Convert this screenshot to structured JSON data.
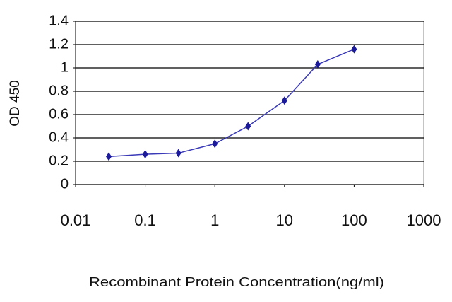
{
  "chart_data": {
    "type": "line",
    "x_label": "Recombinant Protein Concentration(ng/ml)",
    "y_label": "OD 450",
    "x": [
      0.03,
      0.1,
      0.3,
      1,
      3,
      10,
      30,
      100
    ],
    "series": [
      {
        "color": "#1a1a9a",
        "values": [
          0.24,
          0.26,
          0.27,
          0.35,
          0.5,
          0.72,
          1.03,
          1.16
        ]
      }
    ],
    "xscale": "log",
    "xlim": [
      0.01,
      1000
    ],
    "xticks": [
      0.01,
      0.1,
      1,
      10,
      100,
      1000
    ],
    "ylim": [
      0,
      1.4
    ],
    "yticks": [
      0,
      0.2,
      0.4,
      0.6,
      0.8,
      1,
      1.2,
      1.4
    ],
    "grid": true
  }
}
